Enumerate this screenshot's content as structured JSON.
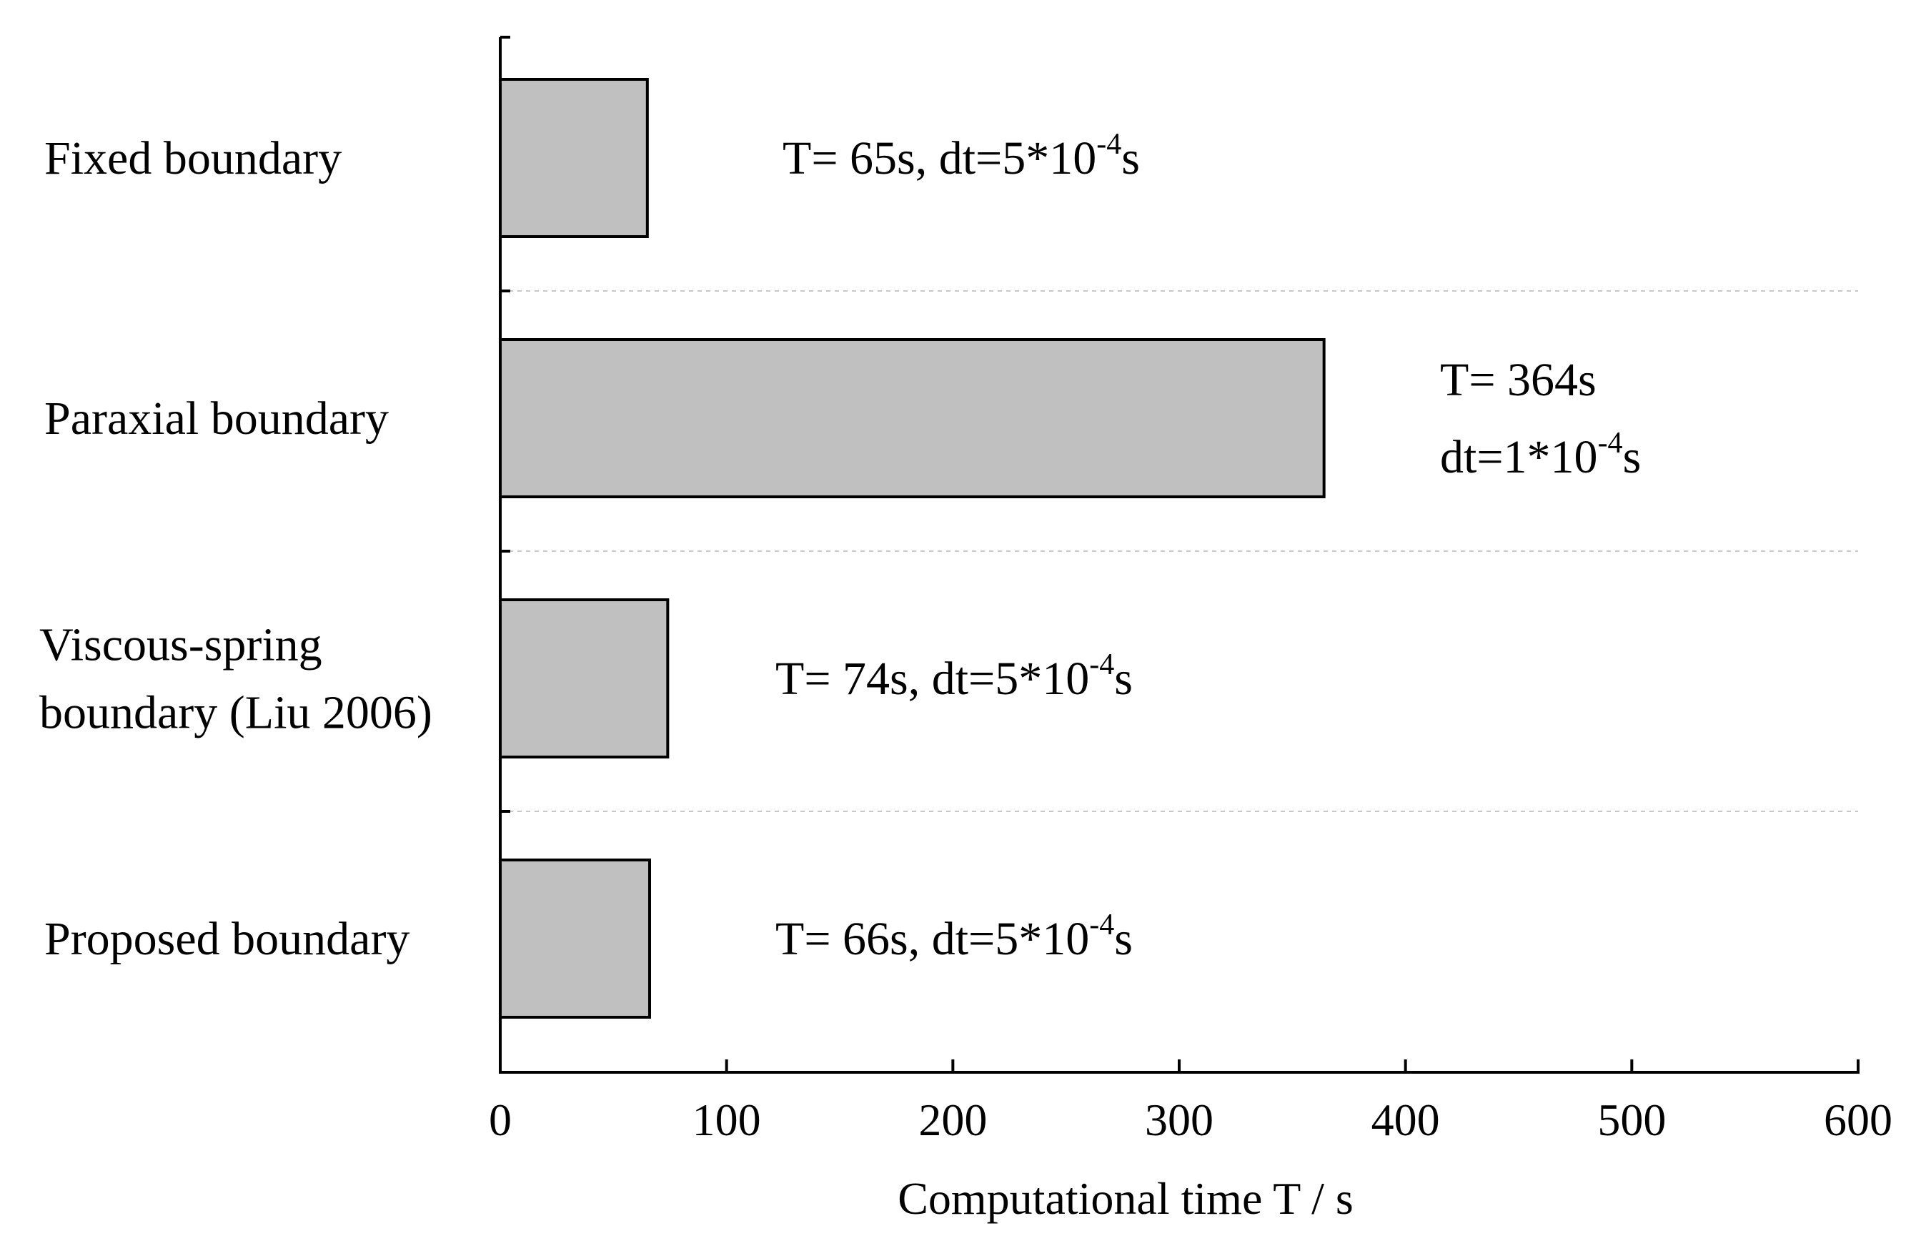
{
  "chart_data": {
    "type": "bar",
    "orientation": "horizontal",
    "categories": [
      [
        "Fixed boundary"
      ],
      [
        "Paraxial boundary"
      ],
      [
        "Viscous-spring",
        "boundary (Liu 2006)"
      ],
      [
        "Proposed boundary"
      ]
    ],
    "values": [
      65,
      364,
      74,
      66
    ],
    "annotations": [
      [
        {
          "base": "T= 65s, dt=5*10",
          "sup": "-4",
          "tail": "s"
        }
      ],
      [
        {
          "base": "T= 364s",
          "sup": "",
          "tail": ""
        },
        {
          "base": "dt=1*10",
          "sup": "-4",
          "tail": "s"
        }
      ],
      [
        {
          "base": "T= 74s, dt=5*10",
          "sup": "-4",
          "tail": "s"
        }
      ],
      [
        {
          "base": "T= 66s, dt=5*10",
          "sup": "-4",
          "tail": "s"
        }
      ]
    ],
    "xlabel": "Computational time T / s",
    "xlim": [
      0,
      600
    ],
    "xticks": [
      0,
      100,
      200,
      300,
      400,
      500,
      600
    ],
    "grid": "dashed separators between categories",
    "colors": {
      "bar_fill": "#c0c0c0",
      "bar_stroke": "#000000",
      "separator": "#c8c8c8"
    }
  }
}
